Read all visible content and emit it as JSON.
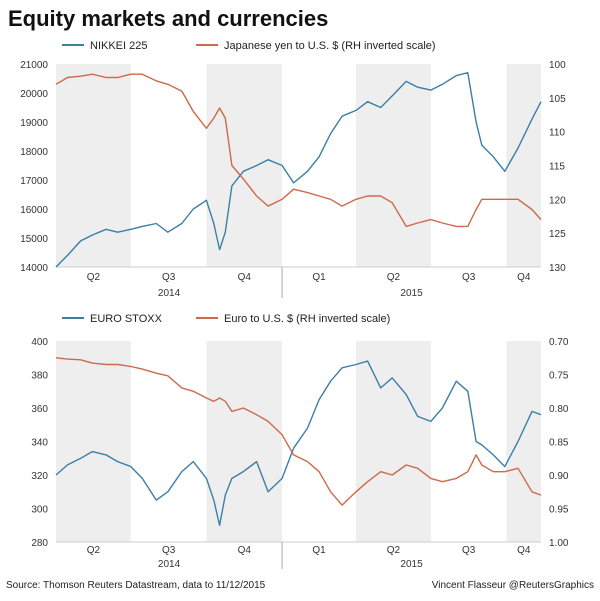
{
  "title": "Equity markets and currencies",
  "source": "Source: Thomson Reuters Datastream, data to 11/12/2015",
  "credit": "Vincent Flasseur @ReutersGraphics",
  "colors": {
    "equity": "#3b7fa6",
    "currency": "#cc6a4a",
    "shade": "#eeeeee",
    "axis": "#999999"
  },
  "chart_data": [
    {
      "type": "line",
      "x_axis": {
        "quarters": [
          "Q2",
          "Q3",
          "Q4",
          "Q1",
          "Q2",
          "Q3",
          "Q4"
        ],
        "years": [
          "2014",
          "2015"
        ],
        "shaded_quarters": [
          "Q2",
          "Q4",
          "Q2",
          "Q4"
        ]
      },
      "y_left": {
        "ticks": [
          "21000",
          "20000",
          "19000",
          "18000",
          "17000",
          "16000",
          "15000",
          "14000"
        ],
        "ylim": [
          14000,
          21000
        ]
      },
      "y_right": {
        "ticks": [
          "100",
          "105",
          "110",
          "115",
          "120",
          "125",
          "130"
        ],
        "ylim": [
          100,
          130
        ],
        "inverted": true
      },
      "series": [
        {
          "name": "NIKKEI 225",
          "axis": "left",
          "x": [
            "2014-04-01",
            "2014-04-15",
            "2014-05-01",
            "2014-05-15",
            "2014-06-01",
            "2014-06-15",
            "2014-07-01",
            "2014-07-15",
            "2014-08-01",
            "2014-08-15",
            "2014-09-01",
            "2014-09-15",
            "2014-10-01",
            "2014-10-10",
            "2014-10-17",
            "2014-10-24",
            "2014-11-01",
            "2014-11-15",
            "2014-12-01",
            "2014-12-15",
            "2015-01-01",
            "2015-01-15",
            "2015-02-01",
            "2015-02-15",
            "2015-03-01",
            "2015-03-15",
            "2015-04-01",
            "2015-04-15",
            "2015-05-01",
            "2015-05-15",
            "2015-06-01",
            "2015-06-15",
            "2015-07-01",
            "2015-07-15",
            "2015-08-01",
            "2015-08-15",
            "2015-08-25",
            "2015-09-01",
            "2015-09-15",
            "2015-09-29",
            "2015-10-15",
            "2015-11-01",
            "2015-11-12"
          ],
          "y": [
            14000,
            14400,
            14900,
            15100,
            15300,
            15200,
            15300,
            15400,
            15500,
            15200,
            15500,
            16000,
            16300,
            15500,
            14600,
            15200,
            16800,
            17300,
            17500,
            17700,
            17500,
            16900,
            17300,
            17800,
            18600,
            19200,
            19400,
            19700,
            19500,
            19900,
            20400,
            20200,
            20100,
            20300,
            20600,
            20700,
            19000,
            18200,
            17800,
            17300,
            18100,
            19100,
            19700
          ]
        },
        {
          "name": "Japanese yen to U.S. $ (RH inverted scale)",
          "axis": "right",
          "x": [
            "2014-04-01",
            "2014-04-15",
            "2014-05-01",
            "2014-05-15",
            "2014-06-01",
            "2014-06-15",
            "2014-07-01",
            "2014-07-15",
            "2014-08-01",
            "2014-08-15",
            "2014-09-01",
            "2014-09-15",
            "2014-10-01",
            "2014-10-10",
            "2014-10-17",
            "2014-10-24",
            "2014-11-01",
            "2014-11-15",
            "2014-12-01",
            "2014-12-15",
            "2015-01-01",
            "2015-01-15",
            "2015-02-01",
            "2015-02-15",
            "2015-03-01",
            "2015-03-15",
            "2015-04-01",
            "2015-04-15",
            "2015-05-01",
            "2015-05-15",
            "2015-06-01",
            "2015-06-15",
            "2015-07-01",
            "2015-07-15",
            "2015-08-01",
            "2015-08-15",
            "2015-08-25",
            "2015-09-01",
            "2015-09-15",
            "2015-09-29",
            "2015-10-15",
            "2015-11-01",
            "2015-11-12"
          ],
          "y": [
            103,
            102,
            101.8,
            101.5,
            102,
            102,
            101.5,
            101.5,
            102.5,
            103,
            104,
            107,
            109.5,
            108,
            106.5,
            108,
            115,
            117,
            119.5,
            121,
            120,
            118.5,
            119,
            119.5,
            120,
            121,
            120,
            119.5,
            119.5,
            120.5,
            124,
            123.5,
            123,
            123.5,
            124,
            124,
            121.5,
            120,
            120,
            120,
            120,
            121.5,
            123
          ]
        }
      ]
    },
    {
      "type": "line",
      "x_axis": {
        "quarters": [
          "Q2",
          "Q3",
          "Q4",
          "Q1",
          "Q2",
          "Q3",
          "Q4"
        ],
        "years": [
          "2014",
          "2015"
        ],
        "shaded_quarters": [
          "Q2",
          "Q4",
          "Q2",
          "Q4"
        ]
      },
      "y_left": {
        "ticks": [
          "400",
          "380",
          "360",
          "340",
          "320",
          "300",
          "280"
        ],
        "ylim": [
          280,
          400
        ]
      },
      "y_right": {
        "ticks": [
          "0.70",
          "0.75",
          "0.80",
          "0.85",
          "0.90",
          "0.95",
          "1.00"
        ],
        "ylim": [
          0.7,
          1.0
        ],
        "inverted": true
      },
      "series": [
        {
          "name": "EURO STOXX",
          "axis": "left",
          "x": [
            "2014-04-01",
            "2014-04-15",
            "2014-05-01",
            "2014-05-15",
            "2014-06-01",
            "2014-06-15",
            "2014-07-01",
            "2014-07-15",
            "2014-08-01",
            "2014-08-15",
            "2014-09-01",
            "2014-09-15",
            "2014-10-01",
            "2014-10-10",
            "2014-10-17",
            "2014-10-24",
            "2014-11-01",
            "2014-11-15",
            "2014-12-01",
            "2014-12-15",
            "2015-01-01",
            "2015-01-15",
            "2015-02-01",
            "2015-02-15",
            "2015-03-01",
            "2015-03-15",
            "2015-04-01",
            "2015-04-15",
            "2015-05-01",
            "2015-05-15",
            "2015-06-01",
            "2015-06-15",
            "2015-07-01",
            "2015-07-15",
            "2015-08-01",
            "2015-08-15",
            "2015-08-25",
            "2015-09-01",
            "2015-09-15",
            "2015-09-29",
            "2015-10-15",
            "2015-11-01",
            "2015-11-12"
          ],
          "y": [
            320,
            326,
            330,
            334,
            332,
            328,
            325,
            318,
            305,
            310,
            322,
            328,
            318,
            305,
            290,
            308,
            318,
            322,
            328,
            310,
            318,
            336,
            348,
            365,
            376,
            384,
            386,
            388,
            372,
            378,
            368,
            355,
            352,
            360,
            376,
            370,
            340,
            338,
            332,
            325,
            340,
            358,
            356
          ]
        },
        {
          "name": "Euro to U.S. $ (RH inverted scale)",
          "axis": "right",
          "x": [
            "2014-04-01",
            "2014-04-15",
            "2014-05-01",
            "2014-05-15",
            "2014-06-01",
            "2014-06-15",
            "2014-07-01",
            "2014-07-15",
            "2014-08-01",
            "2014-08-15",
            "2014-09-01",
            "2014-09-15",
            "2014-10-01",
            "2014-10-10",
            "2014-10-17",
            "2014-10-24",
            "2014-11-01",
            "2014-11-15",
            "2014-12-01",
            "2014-12-15",
            "2015-01-01",
            "2015-01-15",
            "2015-02-01",
            "2015-02-15",
            "2015-03-01",
            "2015-03-15",
            "2015-04-01",
            "2015-04-15",
            "2015-05-01",
            "2015-05-15",
            "2015-06-01",
            "2015-06-15",
            "2015-07-01",
            "2015-07-15",
            "2015-08-01",
            "2015-08-15",
            "2015-08-25",
            "2015-09-01",
            "2015-09-15",
            "2015-09-29",
            "2015-10-15",
            "2015-11-01",
            "2015-11-12"
          ],
          "y": [
            0.725,
            0.727,
            0.728,
            0.733,
            0.735,
            0.735,
            0.738,
            0.742,
            0.748,
            0.752,
            0.77,
            0.775,
            0.785,
            0.79,
            0.785,
            0.79,
            0.805,
            0.8,
            0.81,
            0.82,
            0.84,
            0.87,
            0.88,
            0.895,
            0.925,
            0.945,
            0.925,
            0.91,
            0.895,
            0.9,
            0.885,
            0.89,
            0.905,
            0.91,
            0.905,
            0.895,
            0.87,
            0.885,
            0.895,
            0.895,
            0.89,
            0.925,
            0.93
          ]
        }
      ]
    }
  ]
}
